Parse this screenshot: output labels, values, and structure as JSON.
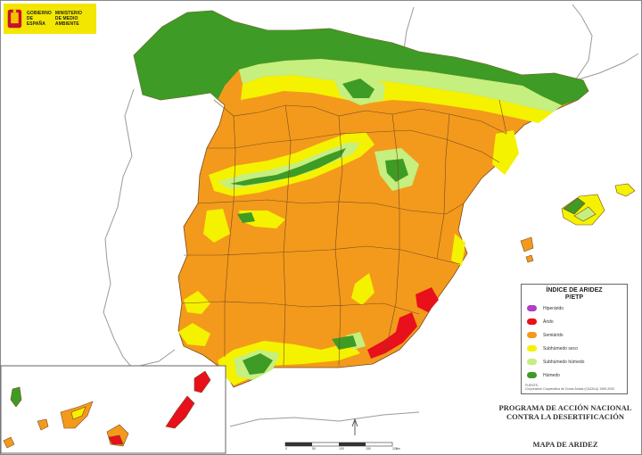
{
  "header": {
    "logo_line1": "GOBIERNO",
    "logo_line2": "DE ESPAÑA",
    "logo_line3": "MINISTERIO",
    "logo_line4": "DE MEDIO AMBIENTE"
  },
  "legend": {
    "title": "ÍNDICE DE ARIDEZ",
    "subtitle": "P/ETP",
    "items": [
      {
        "label": "Hiperárido",
        "color": "#b040c0"
      },
      {
        "label": "Árido",
        "color": "#e8101a"
      },
      {
        "label": "Semiárido",
        "color": "#f39a1c"
      },
      {
        "label": "Subhúmedo seco",
        "color": "#f5f200"
      },
      {
        "label": "Subhúmedo húmedo",
        "color": "#c5ef7e"
      },
      {
        "label": "Húmedo",
        "color": "#3e9b25"
      }
    ],
    "source_line1": "FUENTE:",
    "source_line2": "Corporación Cooperativa de Zonas Áridas (CAZALA) 1999-2000"
  },
  "titles": {
    "program_line1": "PROGRAMA DE ACCIÓN NACIONAL",
    "program_line2": "CONTRA LA DESERTIFICACIÓN",
    "map_title": "MAPA DE ARIDEZ"
  },
  "scale": {
    "labels": [
      "0",
      "50",
      "100",
      "150",
      "200"
    ],
    "unit": "km"
  },
  "colors": {
    "semiarid": "#f39a1c",
    "humid": "#3e9b25",
    "subhumid_dry": "#f5f200",
    "subhumid_humid": "#c5ef7e",
    "arid": "#e8101a",
    "border": "#7a4a1e",
    "coast": "#9a9a9a"
  }
}
